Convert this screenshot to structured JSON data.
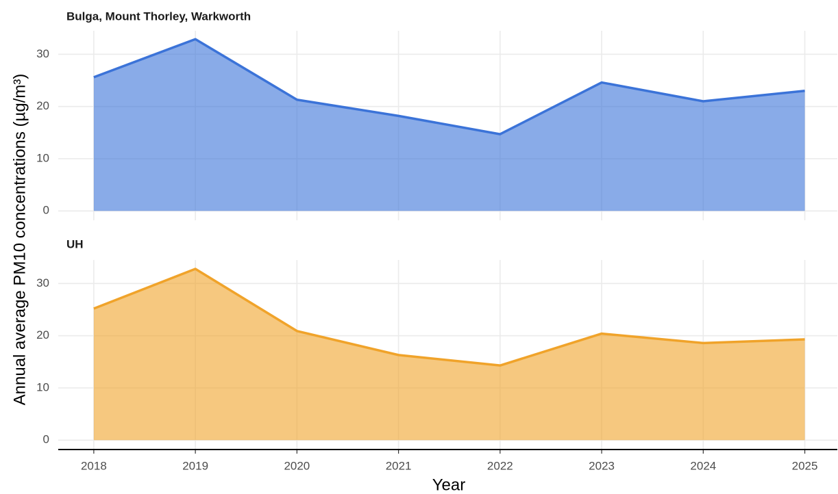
{
  "chart_data": [
    {
      "type": "area",
      "title": "Bulga, Mount Thorley, Warkworth",
      "ylabel": "Annual average PM10 concentrations (µg/m³)",
      "x": [
        2018,
        2019,
        2020,
        2021,
        2022,
        2023,
        2024,
        2025
      ],
      "values": [
        25.6,
        32.9,
        21.3,
        18.2,
        14.7,
        24.6,
        21.0,
        23.0
      ],
      "color": "#3b73d8",
      "xlim": [
        2017.65,
        2025.32
      ],
      "xticks": [
        2018,
        2019,
        2020,
        2021,
        2022,
        2023,
        2024,
        2025
      ],
      "ylim": [
        -1.8,
        34.5
      ],
      "yticks": [
        0,
        10,
        20,
        30
      ],
      "grid": true
    },
    {
      "type": "area",
      "title": "UH",
      "xlabel": "Year",
      "x": [
        2018,
        2019,
        2020,
        2021,
        2022,
        2023,
        2024,
        2025
      ],
      "values": [
        25.2,
        32.8,
        20.9,
        16.3,
        14.3,
        20.4,
        18.6,
        19.3
      ],
      "color": "#f0a32a",
      "xlim": [
        2017.65,
        2025.32
      ],
      "xticks": [
        2018,
        2019,
        2020,
        2021,
        2022,
        2023,
        2024,
        2025
      ],
      "ylim": [
        -1.8,
        34.5
      ],
      "yticks": [
        0,
        10,
        20,
        30
      ],
      "grid": true
    }
  ]
}
